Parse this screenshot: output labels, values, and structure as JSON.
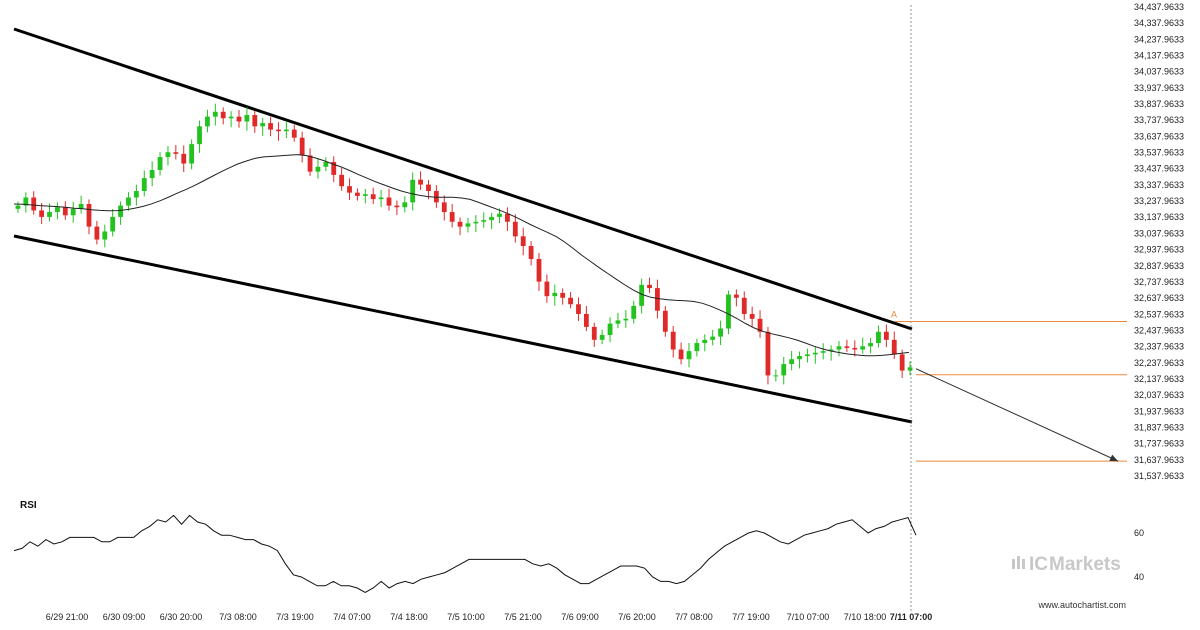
{
  "chart_data": {
    "type": "candlestick",
    "title": "",
    "price_axis": {
      "ylim": [
        31537.9633,
        34437.9633
      ],
      "tick_labels": [
        "34,437.9633",
        "34,337.9633",
        "34,237.9633",
        "34,137.9633",
        "34,037.9633",
        "33,937.9633",
        "33,837.9633",
        "33,737.9633",
        "33,637.9633",
        "33,537.9633",
        "33,437.9633",
        "33,337.9633",
        "33,237.9633",
        "33,137.9633",
        "33,037.9633",
        "32,937.9633",
        "32,837.9633",
        "32,737.9633",
        "32,637.9633",
        "32,537.9633",
        "32,437.9633",
        "32,337.9633",
        "32,237.9633",
        "32,137.9633",
        "32,037.9633",
        "31,937.9633",
        "31,837.9633",
        "31,737.9633",
        "31,637.9633",
        "31,537.9633"
      ]
    },
    "x_tick_labels": [
      "6/29 21:00",
      "6/30 09:00",
      "6/30 20:00",
      "7/3 08:00",
      "7/3 19:00",
      "7/4 07:00",
      "7/4 18:00",
      "7/5 10:00",
      "7/5 21:00",
      "7/6 09:00",
      "7/6 20:00",
      "7/7 08:00",
      "7/7 19:00",
      "7/10 07:00",
      "7/10 18:00",
      "7/11 07:00"
    ],
    "current_time_label": "7/11 07:00",
    "close_series": [
      33210,
      33260,
      33180,
      33140,
      33170,
      33200,
      33150,
      33190,
      33220,
      33080,
      33000,
      33050,
      33140,
      33210,
      33260,
      33300,
      33380,
      33430,
      33510,
      33540,
      33530,
      33470,
      33590,
      33700,
      33760,
      33790,
      33750,
      33760,
      33730,
      33770,
      33700,
      33720,
      33680,
      33670,
      33680,
      33630,
      33520,
      33420,
      33450,
      33480,
      33400,
      33330,
      33290,
      33270,
      33280,
      33250,
      33260,
      33210,
      33200,
      33230,
      33370,
      33340,
      33300,
      33230,
      33170,
      33110,
      33080,
      33100,
      33110,
      33120,
      33140,
      33160,
      33110,
      33020,
      32960,
      32880,
      32740,
      32650,
      32670,
      32640,
      32600,
      32540,
      32460,
      32380,
      32410,
      32480,
      32500,
      32510,
      32590,
      32720,
      32700,
      32560,
      32430,
      32320,
      32260,
      32310,
      32360,
      32380,
      32400,
      32450,
      32660,
      32640,
      32540,
      32510,
      32430,
      32160,
      32160,
      32230,
      32260,
      32280,
      32290,
      32300,
      32310,
      32320,
      32340,
      32330,
      32320,
      32340,
      32360,
      32430,
      32380,
      32290,
      32190,
      32210
    ],
    "ma_series": [
      33220,
      33218,
      33214,
      33210,
      33207,
      33204,
      33200,
      33194,
      33190,
      33184,
      33180,
      33178,
      33179,
      33184,
      33193,
      33205,
      33221,
      33240,
      33263,
      33287,
      33310,
      33335,
      33362,
      33390,
      33417,
      33443,
      33467,
      33486,
      33502,
      33511,
      33514,
      33518,
      33522,
      33525,
      33519,
      33505,
      33488,
      33468,
      33449,
      33427,
      33403,
      33380,
      33358,
      33338,
      33318,
      33300,
      33286,
      33275,
      33266,
      33262,
      33262,
      33262,
      33257,
      33248,
      33230,
      33210,
      33190,
      33169,
      33146,
      33120,
      33093,
      33068,
      33044,
      33018,
      32984,
      32944,
      32902,
      32864,
      32826,
      32790,
      32754,
      32719,
      32687,
      32660,
      32643,
      32634,
      32628,
      32624,
      32621,
      32617,
      32606,
      32587,
      32565,
      32540,
      32512,
      32481,
      32454,
      32433,
      32418,
      32406,
      32393,
      32378,
      32360,
      32340,
      32323,
      32310,
      32300,
      32292,
      32286,
      32282,
      32282,
      32285,
      32290,
      32296,
      32302
    ],
    "rsi": {
      "title": "RSI",
      "ticks": [
        60,
        40
      ],
      "values": [
        52,
        53,
        56,
        54,
        57,
        55,
        56,
        58,
        58,
        58,
        58,
        56,
        56,
        58,
        58,
        58,
        61,
        63,
        66,
        65,
        68,
        64,
        68,
        65,
        64,
        61,
        59,
        59,
        58,
        57,
        57,
        55,
        54,
        52,
        46,
        41,
        40,
        38,
        36,
        36,
        38,
        36,
        36,
        35,
        33,
        35,
        38,
        35,
        37,
        38,
        37,
        39,
        40,
        41,
        42,
        44,
        46,
        48,
        48,
        48,
        48,
        48,
        48,
        48,
        48,
        46,
        45,
        46,
        44,
        41,
        39,
        37,
        37,
        39,
        41,
        43,
        45,
        45,
        45,
        44,
        40,
        38,
        38,
        37,
        38,
        41,
        44,
        48,
        51,
        54,
        56,
        58,
        60,
        61,
        60,
        58,
        56,
        55,
        57,
        59,
        60,
        61,
        62,
        64,
        65,
        66,
        63,
        60,
        62,
        63,
        65,
        66,
        67,
        59
      ]
    },
    "pattern": {
      "kind": "falling wedge channel",
      "annotation_label": "A",
      "levels": [
        32493,
        32164,
        31630
      ]
    },
    "colors": {
      "up": "#22c21f",
      "down": "#e02a2a",
      "trendline": "#000000",
      "ma": "#222222",
      "level": "#e8883d",
      "projection": "#333333"
    }
  },
  "branding": {
    "logo_text_ic": "IC",
    "logo_text_markets": "Markets",
    "site": "www.autochartist.com"
  }
}
